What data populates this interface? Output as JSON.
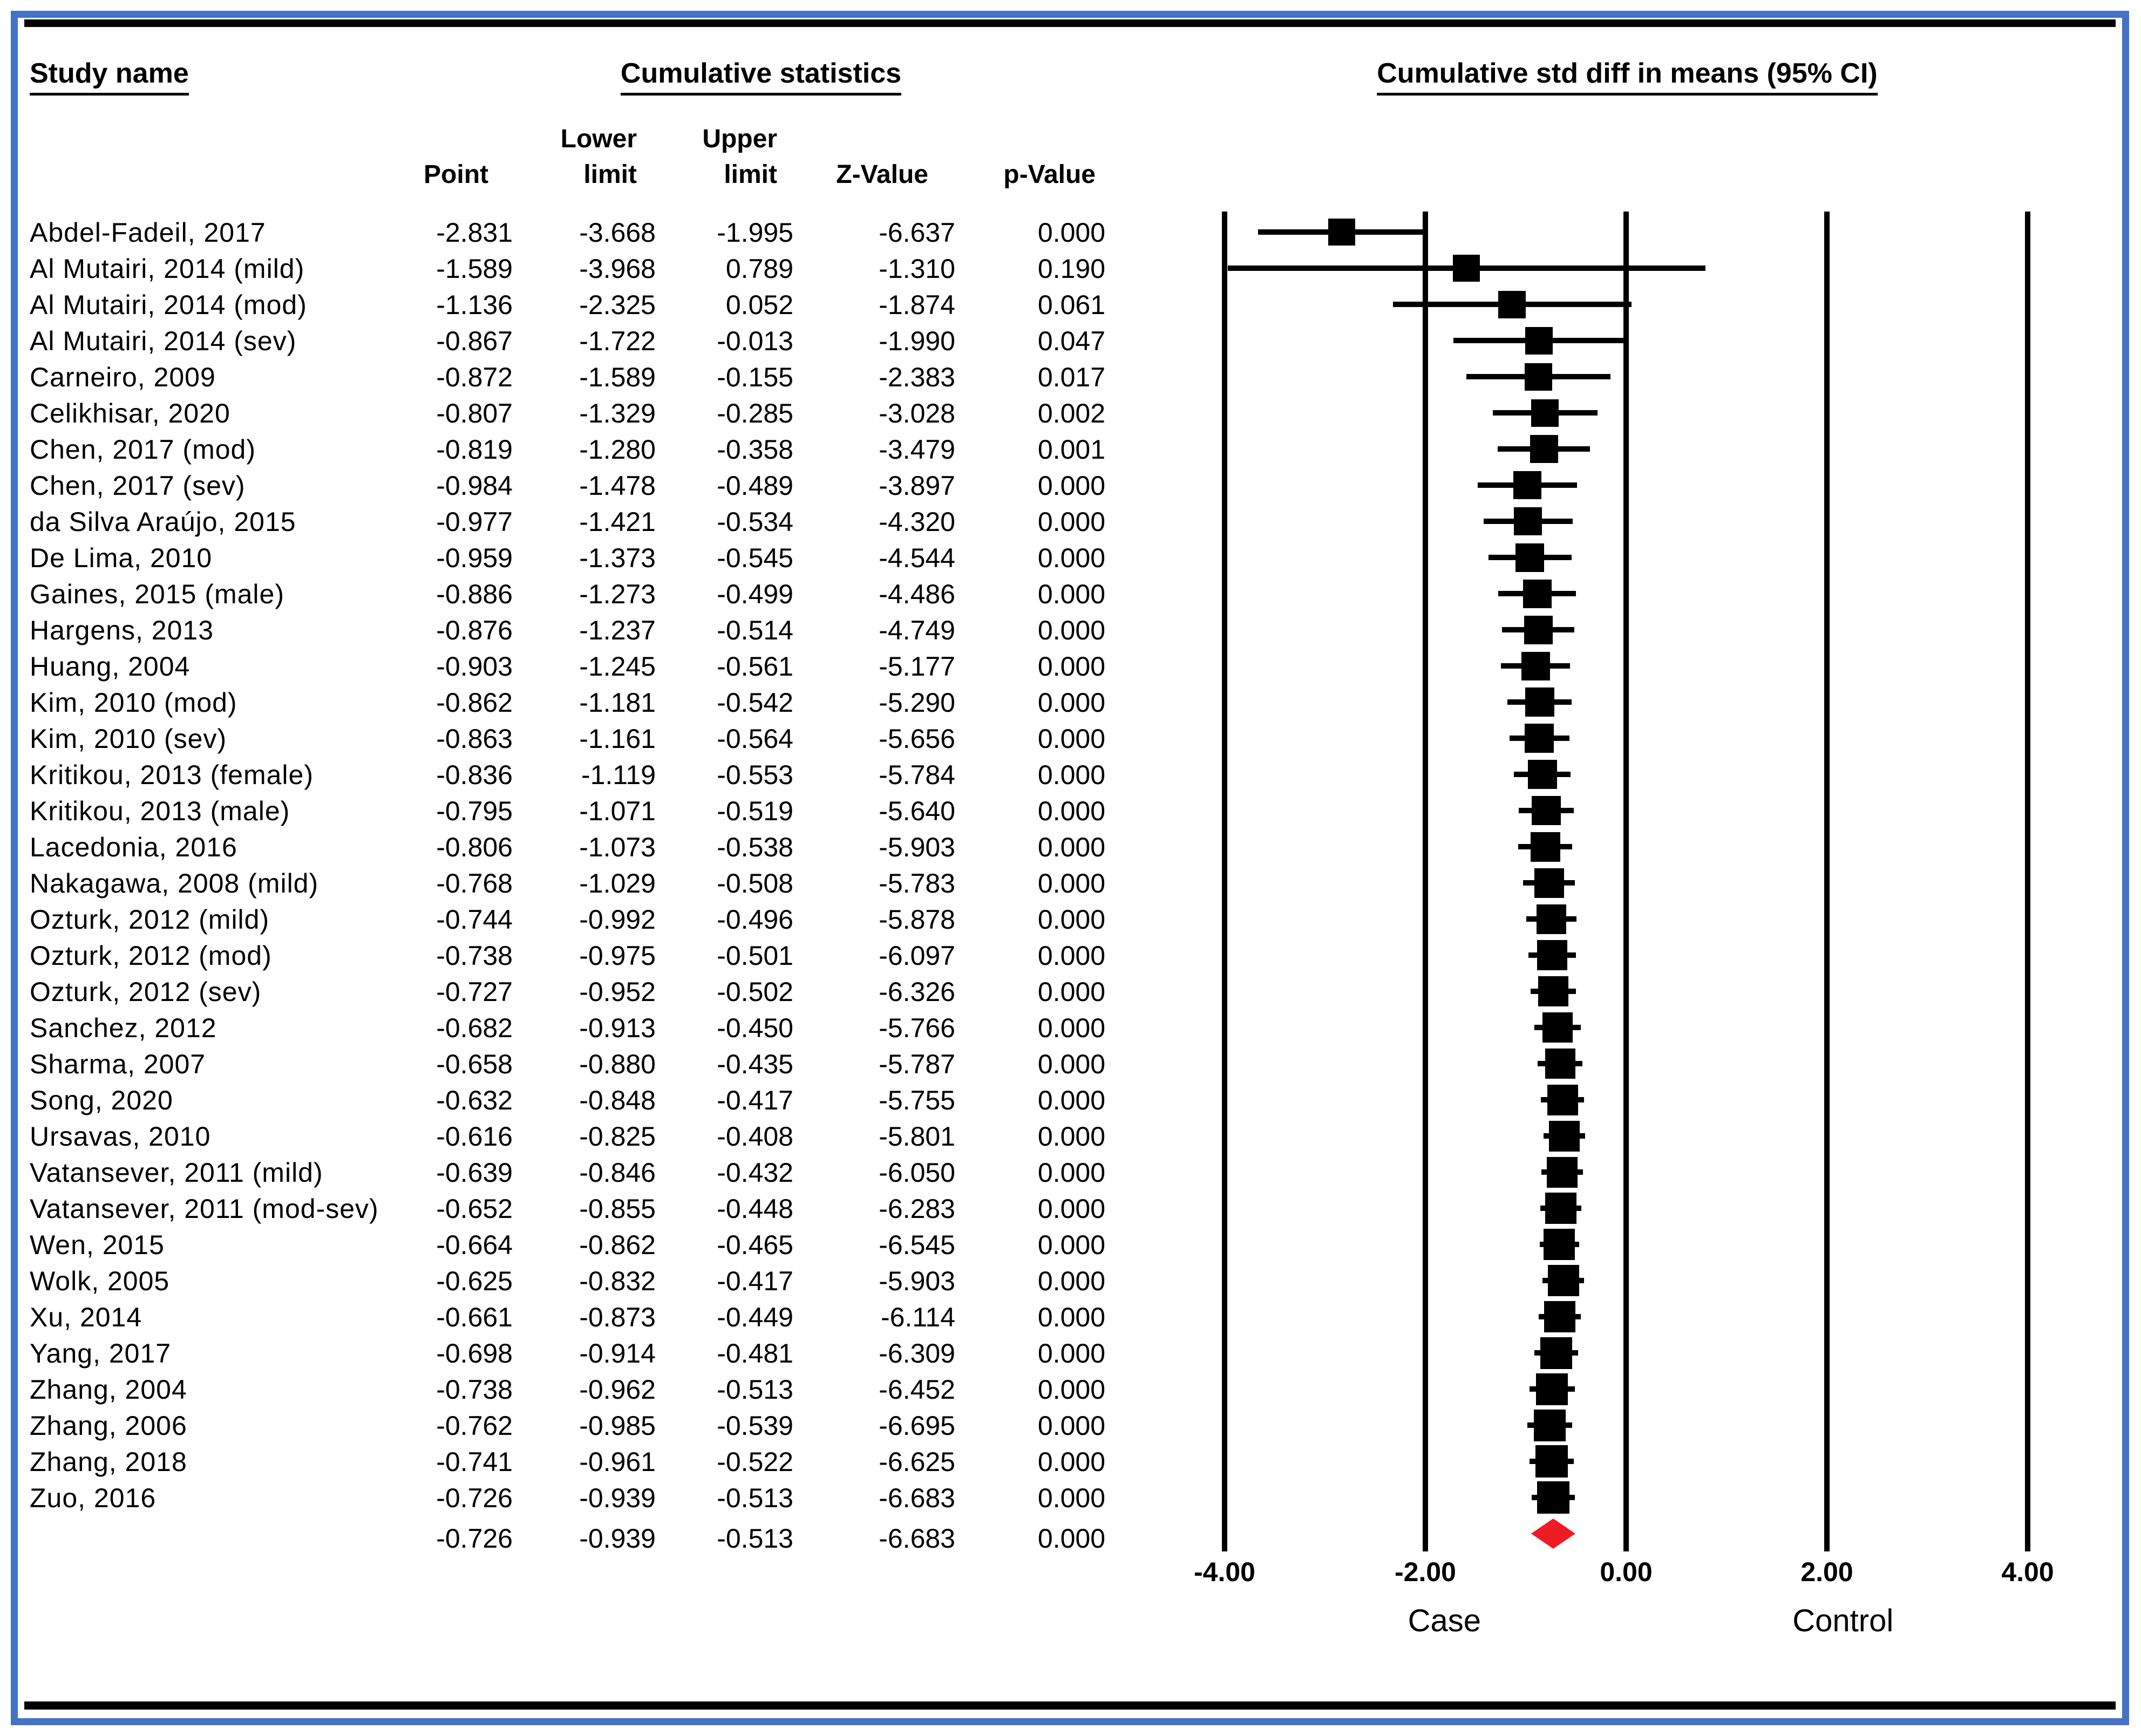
{
  "frame": {
    "border_color": "#4472C4",
    "rule_color": "#000000"
  },
  "headers": {
    "study_col": "Study name",
    "stats_group": "Cumulative statistics",
    "plot_title": "Cumulative std diff in means (95% CI)",
    "sub_row1": {
      "lower": "Lower",
      "upper": "Upper"
    },
    "sub_row2": {
      "point": "Point",
      "lower_limit": "limit",
      "upper_limit": "limit",
      "z": "Z-Value",
      "p": "p-Value"
    }
  },
  "axis": {
    "x_min": -4,
    "x_max": 4,
    "ticks": [
      {
        "label": "-4.00",
        "value": -4
      },
      {
        "label": "-2.00",
        "value": -2
      },
      {
        "label": "0.00",
        "value": 0
      },
      {
        "label": "2.00",
        "value": 2
      },
      {
        "label": "4.00",
        "value": 4
      }
    ],
    "group_labels": [
      {
        "label": "Case",
        "value": -1.81
      },
      {
        "label": "Control",
        "value": 2.16
      }
    ]
  },
  "chart_data": {
    "type": "forest",
    "title": "Cumulative std diff in means (95% CI)",
    "x_domain": [
      -4,
      4
    ],
    "marker_color": "#000000",
    "summary_color": "#ED1C24",
    "columns": [
      "Point",
      "Lower limit",
      "Upper limit",
      "Z-Value",
      "p-Value"
    ],
    "studies": [
      {
        "name": "Abdel-Fadeil, 2017",
        "point": -2.831,
        "lower": -3.668,
        "upper": -1.995,
        "z": -6.637,
        "p": 0.0
      },
      {
        "name": "Al Mutairi, 2014 (mild)",
        "point": -1.589,
        "lower": -3.968,
        "upper": 0.789,
        "z": -1.31,
        "p": 0.19
      },
      {
        "name": "Al Mutairi, 2014 (mod)",
        "point": -1.136,
        "lower": -2.325,
        "upper": 0.052,
        "z": -1.874,
        "p": 0.061
      },
      {
        "name": "Al Mutairi, 2014 (sev)",
        "point": -0.867,
        "lower": -1.722,
        "upper": -0.013,
        "z": -1.99,
        "p": 0.047
      },
      {
        "name": "Carneiro, 2009",
        "point": -0.872,
        "lower": -1.589,
        "upper": -0.155,
        "z": -2.383,
        "p": 0.017
      },
      {
        "name": "Celikhisar, 2020",
        "point": -0.807,
        "lower": -1.329,
        "upper": -0.285,
        "z": -3.028,
        "p": 0.002
      },
      {
        "name": "Chen, 2017 (mod)",
        "point": -0.819,
        "lower": -1.28,
        "upper": -0.358,
        "z": -3.479,
        "p": 0.001
      },
      {
        "name": "Chen, 2017 (sev)",
        "point": -0.984,
        "lower": -1.478,
        "upper": -0.489,
        "z": -3.897,
        "p": 0.0
      },
      {
        "name": "da Silva Araújo, 2015",
        "point": -0.977,
        "lower": -1.421,
        "upper": -0.534,
        "z": -4.32,
        "p": 0.0
      },
      {
        "name": "De Lima, 2010",
        "point": -0.959,
        "lower": -1.373,
        "upper": -0.545,
        "z": -4.544,
        "p": 0.0
      },
      {
        "name": "Gaines, 2015 (male)",
        "point": -0.886,
        "lower": -1.273,
        "upper": -0.499,
        "z": -4.486,
        "p": 0.0
      },
      {
        "name": "Hargens, 2013",
        "point": -0.876,
        "lower": -1.237,
        "upper": -0.514,
        "z": -4.749,
        "p": 0.0
      },
      {
        "name": "Huang, 2004",
        "point": -0.903,
        "lower": -1.245,
        "upper": -0.561,
        "z": -5.177,
        "p": 0.0
      },
      {
        "name": "Kim, 2010 (mod)",
        "point": -0.862,
        "lower": -1.181,
        "upper": -0.542,
        "z": -5.29,
        "p": 0.0
      },
      {
        "name": "Kim, 2010 (sev)",
        "point": -0.863,
        "lower": -1.161,
        "upper": -0.564,
        "z": -5.656,
        "p": 0.0
      },
      {
        "name": "Kritikou, 2013 (female)",
        "point": -0.836,
        "lower": -1.119,
        "upper": -0.553,
        "z": -5.784,
        "p": 0.0
      },
      {
        "name": "Kritikou, 2013 (male)",
        "point": -0.795,
        "lower": -1.071,
        "upper": -0.519,
        "z": -5.64,
        "p": 0.0
      },
      {
        "name": "Lacedonia, 2016",
        "point": -0.806,
        "lower": -1.073,
        "upper": -0.538,
        "z": -5.903,
        "p": 0.0
      },
      {
        "name": "Nakagawa, 2008 (mild)",
        "point": -0.768,
        "lower": -1.029,
        "upper": -0.508,
        "z": -5.783,
        "p": 0.0
      },
      {
        "name": "Ozturk, 2012 (mild)",
        "point": -0.744,
        "lower": -0.992,
        "upper": -0.496,
        "z": -5.878,
        "p": 0.0
      },
      {
        "name": "Ozturk, 2012 (mod)",
        "point": -0.738,
        "lower": -0.975,
        "upper": -0.501,
        "z": -6.097,
        "p": 0.0
      },
      {
        "name": "Ozturk, 2012 (sev)",
        "point": -0.727,
        "lower": -0.952,
        "upper": -0.502,
        "z": -6.326,
        "p": 0.0
      },
      {
        "name": "Sanchez, 2012",
        "point": -0.682,
        "lower": -0.913,
        "upper": -0.45,
        "z": -5.766,
        "p": 0.0
      },
      {
        "name": "Sharma, 2007",
        "point": -0.658,
        "lower": -0.88,
        "upper": -0.435,
        "z": -5.787,
        "p": 0.0
      },
      {
        "name": "Song, 2020",
        "point": -0.632,
        "lower": -0.848,
        "upper": -0.417,
        "z": -5.755,
        "p": 0.0
      },
      {
        "name": "Ursavas, 2010",
        "point": -0.616,
        "lower": -0.825,
        "upper": -0.408,
        "z": -5.801,
        "p": 0.0
      },
      {
        "name": "Vatansever, 2011 (mild)",
        "point": -0.639,
        "lower": -0.846,
        "upper": -0.432,
        "z": -6.05,
        "p": 0.0
      },
      {
        "name": "Vatansever, 2011 (mod-sev)",
        "point": -0.652,
        "lower": -0.855,
        "upper": -0.448,
        "z": -6.283,
        "p": 0.0
      },
      {
        "name": "Wen, 2015",
        "point": -0.664,
        "lower": -0.862,
        "upper": -0.465,
        "z": -6.545,
        "p": 0.0
      },
      {
        "name": "Wolk, 2005",
        "point": -0.625,
        "lower": -0.832,
        "upper": -0.417,
        "z": -5.903,
        "p": 0.0
      },
      {
        "name": "Xu, 2014",
        "point": -0.661,
        "lower": -0.873,
        "upper": -0.449,
        "z": -6.114,
        "p": 0.0
      },
      {
        "name": "Yang, 2017",
        "point": -0.698,
        "lower": -0.914,
        "upper": -0.481,
        "z": -6.309,
        "p": 0.0
      },
      {
        "name": "Zhang, 2004",
        "point": -0.738,
        "lower": -0.962,
        "upper": -0.513,
        "z": -6.452,
        "p": 0.0
      },
      {
        "name": "Zhang, 2006",
        "point": -0.762,
        "lower": -0.985,
        "upper": -0.539,
        "z": -6.695,
        "p": 0.0
      },
      {
        "name": "Zhang, 2018",
        "point": -0.741,
        "lower": -0.961,
        "upper": -0.522,
        "z": -6.625,
        "p": 0.0
      },
      {
        "name": "Zuo, 2016",
        "point": -0.726,
        "lower": -0.939,
        "upper": -0.513,
        "z": -6.683,
        "p": 0.0
      }
    ],
    "summary": {
      "name": "",
      "point": -0.726,
      "lower": -0.939,
      "upper": -0.513,
      "z": -6.683,
      "p": 0.0
    }
  }
}
